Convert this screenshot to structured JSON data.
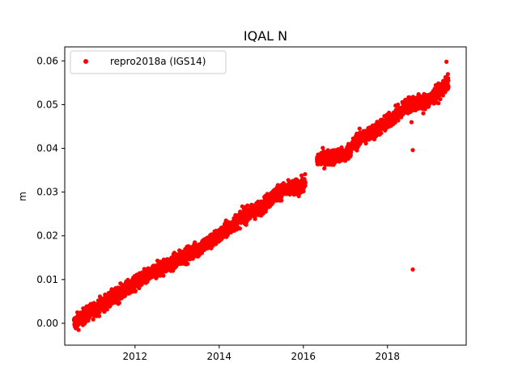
{
  "chart_data": {
    "type": "scatter",
    "title": "IQAL N",
    "xlabel": "",
    "ylabel": "m",
    "xlim": [
      2010.33,
      2019.87
    ],
    "ylim": [
      -0.005,
      0.0632
    ],
    "xticks": [
      2012,
      2014,
      2016,
      2018
    ],
    "yticks": [
      0.0,
      0.01,
      0.02,
      0.03,
      0.04,
      0.05,
      0.06
    ],
    "xtick_labels": [
      "2012",
      "2014",
      "2016",
      "2018"
    ],
    "ytick_labels": [
      "0.00",
      "0.01",
      "0.02",
      "0.03",
      "0.04",
      "0.05",
      "0.06"
    ],
    "legend_position": "top-left",
    "grid": false,
    "series": [
      {
        "name": "repro2018a (IGS14)",
        "color": "#ff0000",
        "trend": [
          [
            2010.55,
            0.0
          ],
          [
            2011.0,
            0.003
          ],
          [
            2011.5,
            0.006
          ],
          [
            2012.0,
            0.009
          ],
          [
            2012.5,
            0.012
          ],
          [
            2013.0,
            0.0145
          ],
          [
            2013.5,
            0.017
          ],
          [
            2014.0,
            0.02
          ],
          [
            2014.5,
            0.024
          ],
          [
            2015.0,
            0.0265
          ],
          [
            2015.4,
            0.03
          ],
          [
            2016.0,
            0.0315
          ],
          [
            2016.35,
            0.0375
          ],
          [
            2017.0,
            0.0385
          ],
          [
            2017.3,
            0.042
          ],
          [
            2017.7,
            0.044
          ],
          [
            2018.0,
            0.046
          ],
          [
            2018.5,
            0.05
          ],
          [
            2019.0,
            0.051
          ],
          [
            2019.45,
            0.055
          ]
        ],
        "gap": [
          2016.05,
          2016.32
        ],
        "outliers": [
          [
            2018.6,
            0.0123
          ],
          [
            2018.6,
            0.0396
          ],
          [
            2019.4,
            0.0598
          ],
          [
            2018.57,
            0.046
          ],
          [
            2018.85,
            0.048
          ]
        ]
      }
    ]
  }
}
